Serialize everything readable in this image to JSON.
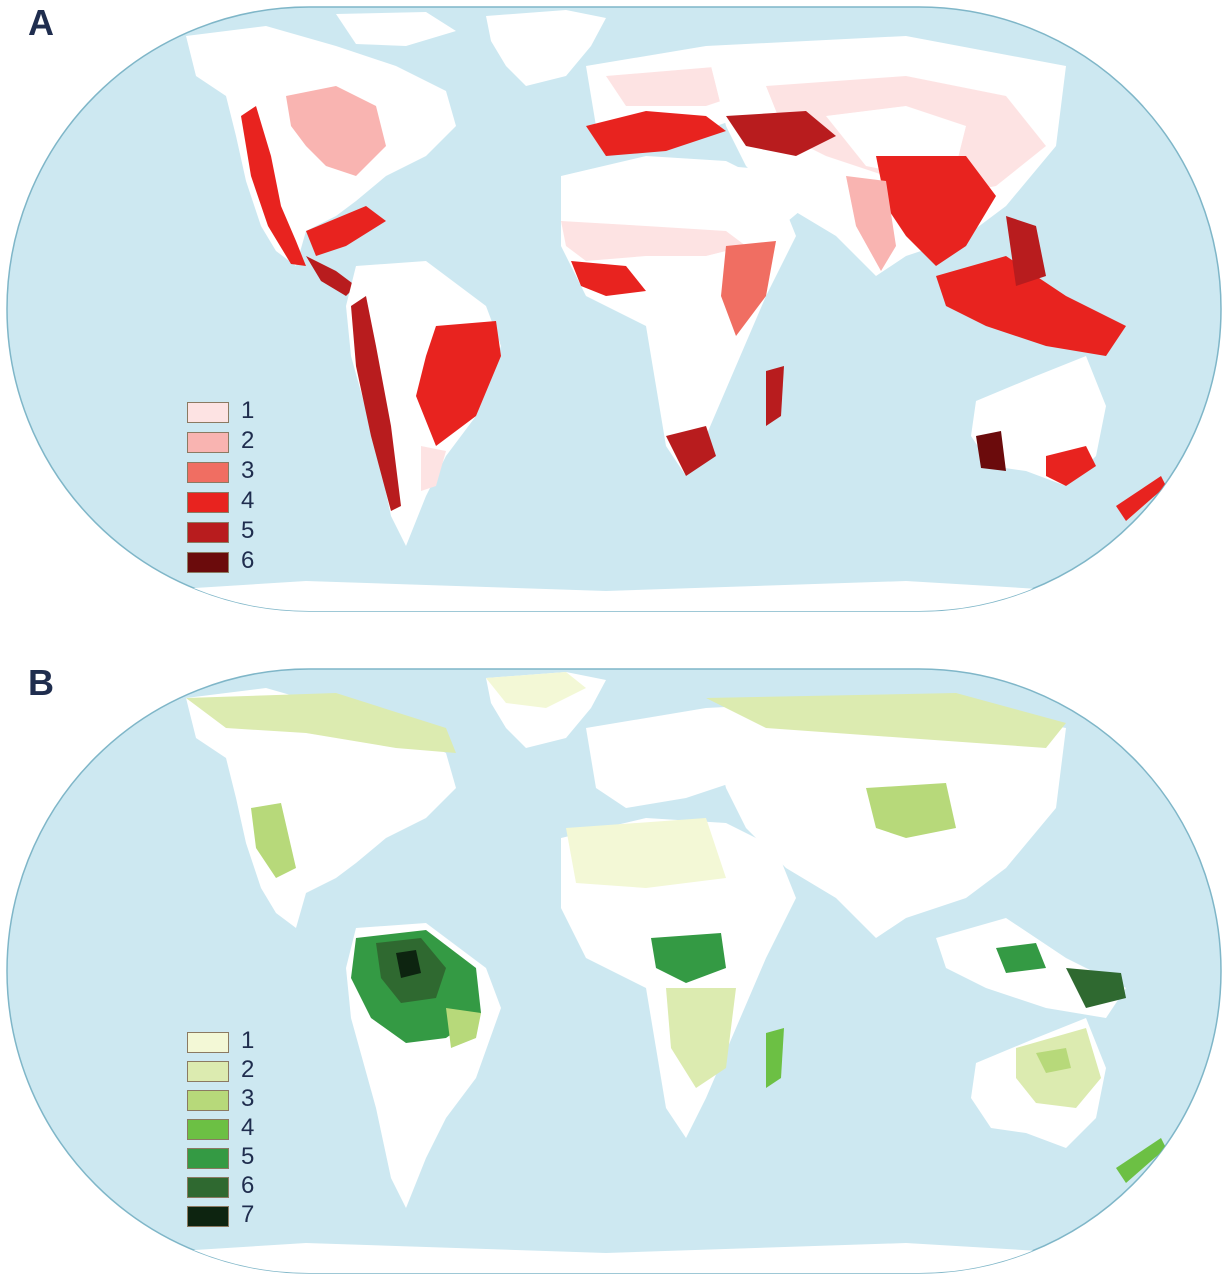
{
  "panels": [
    {
      "label": "A",
      "legend": [
        {
          "text": "1",
          "color": "#fde3e3"
        },
        {
          "text": "2",
          "color": "#f9b4b1"
        },
        {
          "text": "3",
          "color": "#f06e62"
        },
        {
          "text": "4",
          "color": "#e8231f"
        },
        {
          "text": "5",
          "color": "#b81c1e"
        },
        {
          "text": "6",
          "color": "#6b0b0c"
        }
      ]
    },
    {
      "label": "B",
      "legend": [
        {
          "text": "1",
          "color": "#f3f8d6"
        },
        {
          "text": "2",
          "color": "#dcebb0"
        },
        {
          "text": "3",
          "color": "#b7d97a"
        },
        {
          "text": "4",
          "color": "#6cc044"
        },
        {
          "text": "5",
          "color": "#349a44"
        },
        {
          "text": "6",
          "color": "#2f6930"
        },
        {
          "text": "7",
          "color": "#0d2410"
        }
      ]
    }
  ],
  "colors": {
    "ocean": "#cde8f1",
    "ocean_border": "#7fb6c8",
    "land": "#ffffff"
  }
}
